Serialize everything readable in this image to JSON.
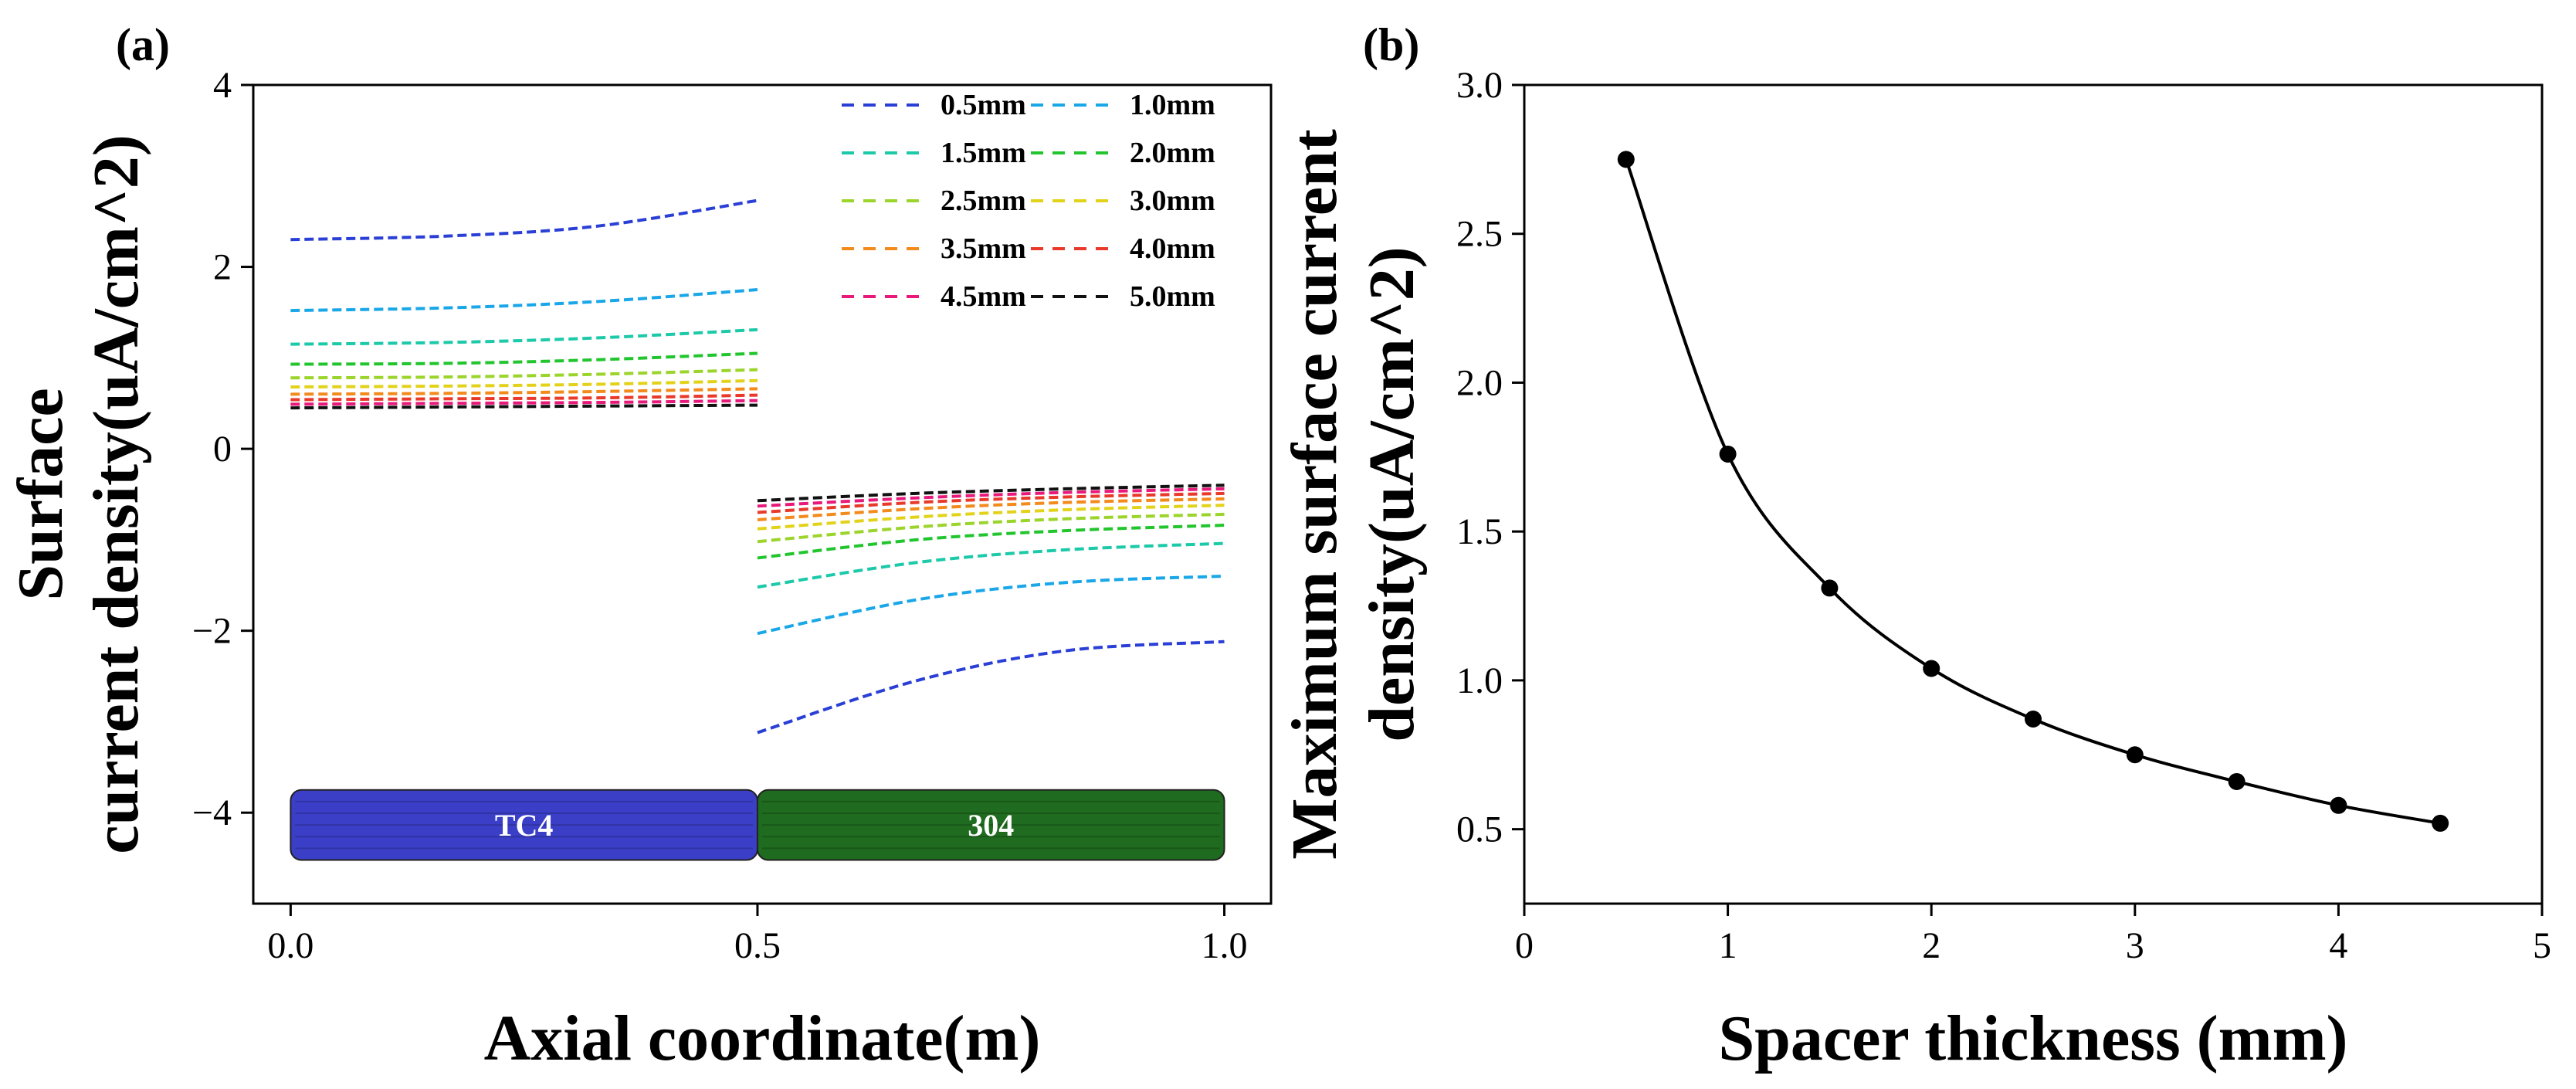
{
  "chart_data": [
    {
      "panel": "(a)",
      "type": "line",
      "xlabel": "Axial coordinate(m)",
      "ylabel_line1": "Surface",
      "ylabel_line2": "current density(uA/cm^2)",
      "xlim": [
        -0.04,
        1.05
      ],
      "ylim": [
        -5,
        4
      ],
      "xticks": [
        "0.0",
        "0.5",
        "1.0"
      ],
      "xtick_values": [
        0.0,
        0.5,
        1.0
      ],
      "yticks": [
        "−4",
        "−2",
        "0",
        "2",
        "4"
      ],
      "ytick_values": [
        -4,
        -2,
        0,
        2,
        4
      ],
      "series": [
        {
          "name": "0.5mm",
          "color": "#2a3fd6",
          "left": [
            2.3,
            2.34,
            2.45,
            2.73
          ],
          "right": [
            -3.12,
            -2.55,
            -2.22,
            -2.12
          ]
        },
        {
          "name": "1.0mm",
          "color": "#1aa7e8",
          "left": [
            1.52,
            1.55,
            1.62,
            1.75
          ],
          "right": [
            -2.03,
            -1.66,
            -1.47,
            -1.4
          ]
        },
        {
          "name": "1.5mm",
          "color": "#1cc9a8",
          "left": [
            1.15,
            1.17,
            1.22,
            1.31
          ],
          "right": [
            -1.52,
            -1.25,
            -1.11,
            -1.04
          ]
        },
        {
          "name": "2.0mm",
          "color": "#22c52e",
          "left": [
            0.93,
            0.94,
            0.98,
            1.05
          ],
          "right": [
            -1.2,
            -1.0,
            -0.9,
            -0.84
          ]
        },
        {
          "name": "2.5mm",
          "color": "#9bd42a",
          "left": [
            0.78,
            0.79,
            0.82,
            0.87
          ],
          "right": [
            -1.02,
            -0.86,
            -0.77,
            -0.72
          ]
        },
        {
          "name": "3.0mm",
          "color": "#e3d21a",
          "left": [
            0.68,
            0.69,
            0.71,
            0.75
          ],
          "right": [
            -0.88,
            -0.75,
            -0.67,
            -0.62
          ]
        },
        {
          "name": "3.5mm",
          "color": "#f38a1c",
          "left": [
            0.6,
            0.61,
            0.63,
            0.66
          ],
          "right": [
            -0.78,
            -0.66,
            -0.59,
            -0.55
          ]
        },
        {
          "name": "4.0mm",
          "color": "#e8392a",
          "left": [
            0.54,
            0.55,
            0.56,
            0.59
          ],
          "right": [
            -0.7,
            -0.59,
            -0.53,
            -0.49
          ]
        },
        {
          "name": "4.5mm",
          "color": "#e8197a",
          "left": [
            0.49,
            0.5,
            0.51,
            0.53
          ],
          "right": [
            -0.63,
            -0.54,
            -0.48,
            -0.44
          ]
        },
        {
          "name": "5.0mm",
          "color": "#111111",
          "left": [
            0.45,
            0.46,
            0.47,
            0.48
          ],
          "right": [
            -0.57,
            -0.49,
            -0.44,
            -0.4
          ]
        }
      ],
      "x_left": [
        0.0,
        0.17,
        0.33,
        0.5
      ],
      "x_right": [
        0.5,
        0.67,
        0.83,
        1.0
      ],
      "parts": [
        {
          "label": "TC4",
          "color": "#3b3fc7",
          "x0": 0.0,
          "x1": 0.5
        },
        {
          "label": "304",
          "color": "#1f6b1f",
          "x0": 0.5,
          "x1": 1.0
        }
      ]
    },
    {
      "panel": "(b)",
      "type": "line",
      "xlabel": "Spacer thickness (mm)",
      "ylabel_line1": "Maximum surface current",
      "ylabel_line2": "density(uA/cm^2)",
      "xlim": [
        0,
        5
      ],
      "ylim": [
        0.25,
        3.0
      ],
      "xticks": [
        "0",
        "1",
        "2",
        "3",
        "4",
        "5"
      ],
      "xtick_values": [
        0,
        1,
        2,
        3,
        4,
        5
      ],
      "yticks": [
        "0.5",
        "1.0",
        "1.5",
        "2.0",
        "2.5",
        "3.0"
      ],
      "ytick_values": [
        0.5,
        1.0,
        1.5,
        2.0,
        2.5,
        3.0
      ],
      "x": [
        0.5,
        1.0,
        1.5,
        2.0,
        2.5,
        3.0,
        3.5,
        4.0,
        4.5
      ],
      "y": [
        2.75,
        1.76,
        1.31,
        1.04,
        0.87,
        0.75,
        0.66,
        0.58,
        0.52
      ],
      "color": "#000000"
    }
  ]
}
